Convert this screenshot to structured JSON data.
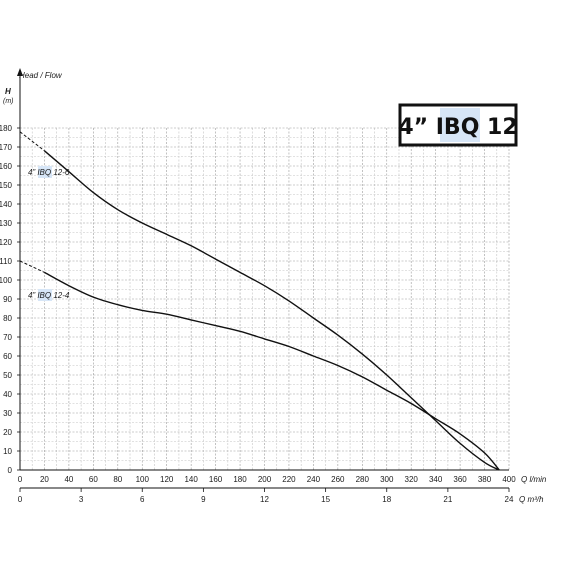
{
  "chart_data": {
    "type": "line",
    "title": "4” IBQ 12",
    "title_highlight_color": "#d7e6f7",
    "ylabel_symbol": "H",
    "ylabel_unit": "(m)",
    "ylabel_desc": "Head / Flow",
    "x_primary_label": "Q l/min",
    "x_secondary_label": "Q m³/h",
    "xlim": [
      0,
      400
    ],
    "ylim": [
      0,
      180
    ],
    "x_ticks": [
      0,
      20,
      40,
      60,
      80,
      100,
      120,
      140,
      160,
      180,
      200,
      220,
      240,
      260,
      280,
      300,
      320,
      340,
      360,
      380,
      400
    ],
    "x_ticks_labels": [
      "0",
      "20",
      "40",
      "60",
      "80",
      "100",
      "120",
      "140",
      "160",
      "180",
      "200",
      "220",
      "240",
      "260",
      "280",
      "300",
      "320",
      "340",
      "360",
      "380",
      "400"
    ],
    "x2_ticks_m3h": [
      0,
      3,
      6,
      9,
      12,
      15,
      18,
      21,
      24
    ],
    "x2_ticks_labels": [
      "0",
      "3",
      "6",
      "9",
      "12",
      "15",
      "18",
      "21",
      "24"
    ],
    "y_ticks": [
      0,
      10,
      20,
      30,
      40,
      50,
      60,
      70,
      80,
      90,
      100,
      110,
      120,
      130,
      140,
      150,
      160,
      170,
      180
    ],
    "y_ticks_labels": [
      "0",
      "10",
      "20",
      "30",
      "40",
      "50",
      "60",
      "70",
      "80",
      "90",
      "100",
      "110",
      "120",
      "130",
      "140",
      "150",
      "160",
      "170",
      "180"
    ],
    "grid": true,
    "line_color": "#111111",
    "series": [
      {
        "name": "4” IBQ 12-6",
        "dashed": [
          [
            0,
            178
          ],
          [
            20,
            168
          ]
        ],
        "x": [
          20,
          40,
          60,
          80,
          100,
          120,
          140,
          160,
          180,
          200,
          220,
          240,
          260,
          280,
          300,
          320,
          340,
          360,
          380,
          392
        ],
        "y": [
          168,
          157,
          146,
          137,
          130,
          124,
          118,
          111,
          104,
          97,
          89,
          80,
          71,
          61,
          50,
          38,
          26,
          14,
          4,
          0
        ]
      },
      {
        "name": "4” IBQ 12-4",
        "dashed": [
          [
            0,
            110
          ],
          [
            20,
            104
          ]
        ],
        "x": [
          20,
          40,
          60,
          80,
          100,
          120,
          140,
          160,
          180,
          200,
          220,
          240,
          260,
          280,
          300,
          320,
          340,
          360,
          380,
          392
        ],
        "y": [
          104,
          97,
          91,
          87,
          84,
          82,
          79,
          76,
          73,
          69,
          65,
          60,
          55,
          49,
          42,
          35,
          27,
          19,
          9,
          0
        ]
      }
    ]
  }
}
